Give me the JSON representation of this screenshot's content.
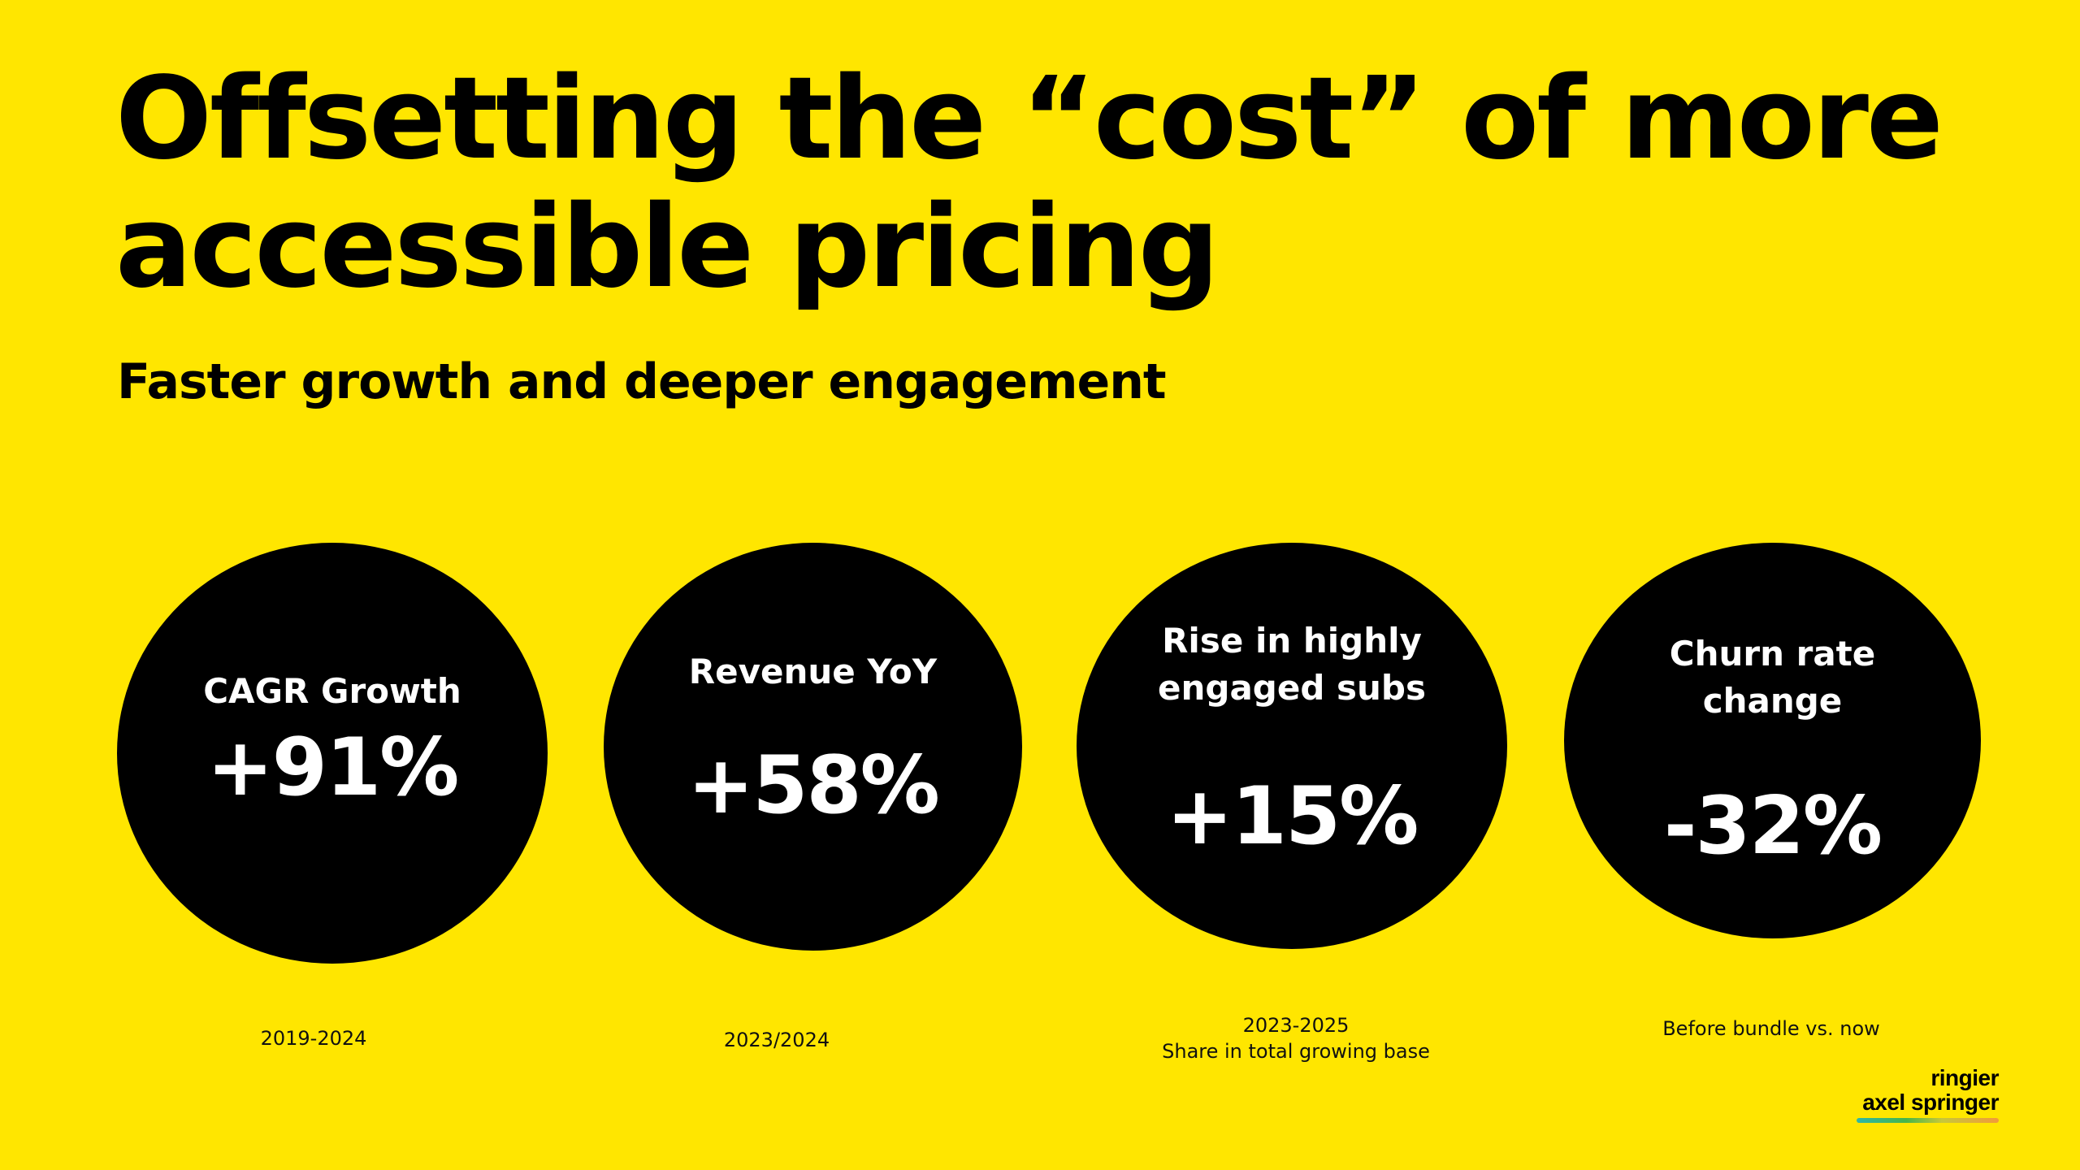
{
  "title": {
    "line1": "Offsetting the “cost” of more",
    "line2": "accessible pricing"
  },
  "subtitle": "Faster growth and deeper engagement",
  "metrics": [
    {
      "label": "CAGR Growth",
      "value": "+91%",
      "note": "2019-2024"
    },
    {
      "label": "Revenue YoY",
      "value": "+58%",
      "note": "2023/2024"
    },
    {
      "label_line1": "Rise in highly",
      "label_line2": "engaged subs",
      "value": "+15%",
      "note_line1": "2023-2025",
      "note_line2": "Share in total growing base"
    },
    {
      "label_line1": "Churn rate",
      "label_line2": "change",
      "value": "-32%",
      "note": "Before bundle vs. now"
    }
  ],
  "logo": {
    "line1": "ringier",
    "line2": "axel springer"
  },
  "colors": {
    "background": "#FFE600",
    "circle": "#000000",
    "circle_text": "#FFFFFF"
  }
}
